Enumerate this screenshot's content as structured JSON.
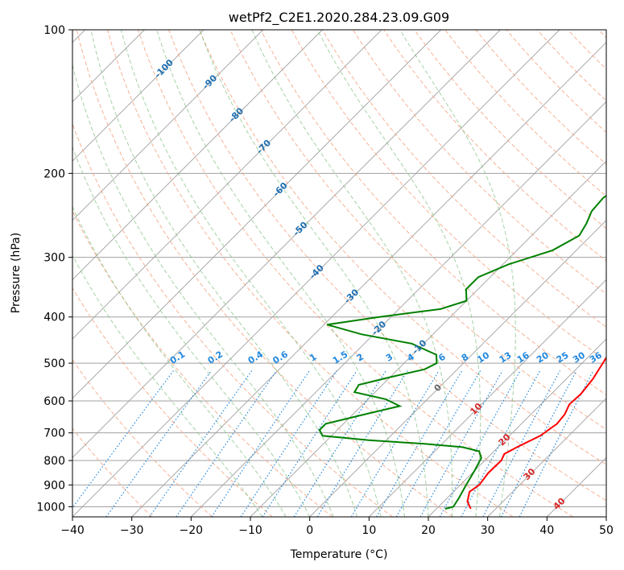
{
  "chart_data": {
    "type": "line",
    "title": "wetPf2_C2E1.2020.284.23.09.G09",
    "xlabel": "Temperature (°C)",
    "ylabel": "Pressure (hPa)",
    "xlim": [
      -40,
      50
    ],
    "ylim": [
      1050,
      100
    ],
    "y_scale": "log",
    "grid": true,
    "x_ticks": [
      "−40",
      "−30",
      "−20",
      "−10",
      "0",
      "10",
      "20",
      "30",
      "40",
      "50"
    ],
    "y_ticks": [
      "100",
      "200",
      "300",
      "400",
      "500",
      "600",
      "700",
      "800",
      "900",
      "1000"
    ],
    "series": [
      {
        "color": "#ff0000",
        "points": [
          [
            -1,
            100
          ],
          [
            1,
            113
          ],
          [
            1.5,
            123
          ],
          [
            0.5,
            131
          ],
          [
            -0.5,
            141
          ],
          [
            -0.5,
            150
          ],
          [
            1.5,
            165
          ],
          [
            3,
            178
          ],
          [
            5,
            195
          ],
          [
            6,
            210
          ],
          [
            7.5,
            225
          ],
          [
            10,
            245
          ],
          [
            13,
            275
          ],
          [
            15,
            300
          ],
          [
            17,
            330
          ],
          [
            19,
            360
          ],
          [
            21,
            390
          ],
          [
            22,
            410
          ],
          [
            22.3,
            440
          ],
          [
            22.7,
            470
          ],
          [
            23.5,
            500
          ],
          [
            24.5,
            540
          ],
          [
            25,
            580
          ],
          [
            24.8,
            610
          ],
          [
            25.7,
            640
          ],
          [
            26,
            670
          ],
          [
            25.2,
            710
          ],
          [
            23.2,
            750
          ],
          [
            22.2,
            775
          ],
          [
            22.8,
            800
          ],
          [
            22.7,
            850
          ],
          [
            23.2,
            900
          ],
          [
            22.7,
            930
          ],
          [
            24,
            975
          ],
          [
            25.8,
            1010
          ]
        ]
      },
      {
        "color": "#008000",
        "points": [
          [
            -1,
            100
          ],
          [
            -1.5,
            105
          ],
          [
            -4,
            113
          ],
          [
            -5.5,
            120
          ],
          [
            -6,
            128
          ],
          [
            -5.7,
            136
          ],
          [
            -6.5,
            150
          ],
          [
            -7,
            165
          ],
          [
            -6.3,
            180
          ],
          [
            -4.7,
            195
          ],
          [
            -3,
            210
          ],
          [
            -4.3,
            225
          ],
          [
            -4,
            240
          ],
          [
            -2.8,
            255
          ],
          [
            -2,
            270
          ],
          [
            -4,
            290
          ],
          [
            -9,
            310
          ],
          [
            -12,
            330
          ],
          [
            -12,
            350
          ],
          [
            -10,
            370
          ],
          [
            -13,
            385
          ],
          [
            -22,
            400
          ],
          [
            -29.5,
            415
          ],
          [
            -22,
            435
          ],
          [
            -12,
            455
          ],
          [
            -6,
            480
          ],
          [
            -4.5,
            500
          ],
          [
            -5.5,
            515
          ],
          [
            -10,
            535
          ],
          [
            -14,
            555
          ],
          [
            -13.5,
            575
          ],
          [
            -7,
            595
          ],
          [
            -3.5,
            615
          ],
          [
            -8,
            640
          ],
          [
            -13,
            670
          ],
          [
            -13,
            690
          ],
          [
            -11.5,
            710
          ],
          [
            -3,
            725
          ],
          [
            7,
            738
          ],
          [
            14,
            750
          ],
          [
            17.5,
            765
          ],
          [
            19,
            790
          ],
          [
            20,
            840
          ],
          [
            21,
            900
          ],
          [
            22,
            960
          ],
          [
            22.5,
            1000
          ],
          [
            21.5,
            1010
          ]
        ]
      }
    ],
    "dry_adiabat_labels": [
      "-100",
      "-90",
      "-80",
      "-70",
      "-60",
      "-50",
      "-40",
      "-30",
      "-20",
      "-10",
      "0",
      "10",
      "20",
      "30",
      "40"
    ],
    "mixing_ratio_labels": [
      "0.1",
      "0.2",
      "0.4",
      "0.6",
      "1",
      "1.5",
      "2",
      "3",
      "4",
      "6",
      "8",
      "10",
      "13",
      "16",
      "20",
      "25",
      "30",
      "36"
    ],
    "colors": {
      "temperature": "#ff0000",
      "dewpoint": "#008000",
      "dry_adiabats": "#f4a582",
      "moist_adiabats": "#7fbf7f",
      "mixing_ratio": "#2288dd",
      "isotherms": "#a0a0a0"
    }
  }
}
